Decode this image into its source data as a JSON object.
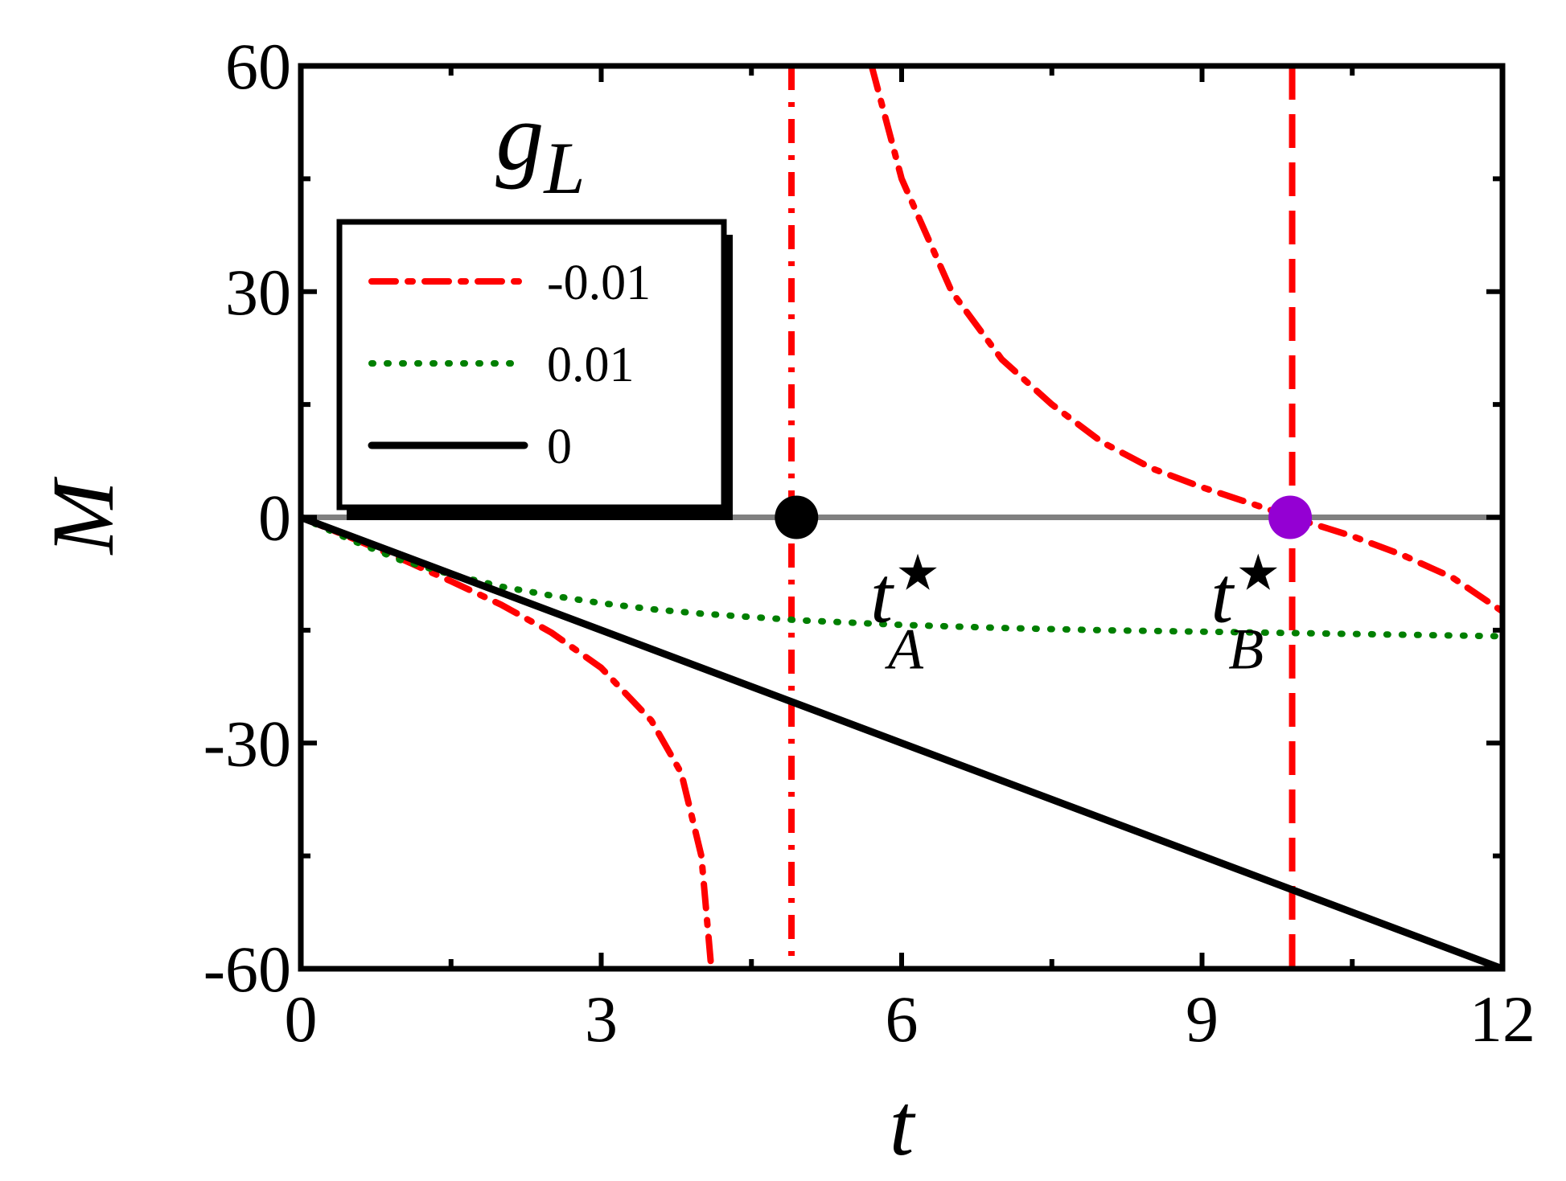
{
  "chart_data": {
    "type": "line",
    "xlabel": "t",
    "ylabel": "M",
    "xlim": [
      0,
      12
    ],
    "ylim": [
      -60,
      60
    ],
    "xticks": [
      0,
      3,
      6,
      9,
      12
    ],
    "xtick_labels": [
      "0",
      "3",
      "6",
      "9",
      "12"
    ],
    "yticks": [
      -60,
      -30,
      0,
      30,
      60
    ],
    "ytick_labels": [
      "-60",
      "-30",
      "0",
      "30",
      "60"
    ],
    "grid": false,
    "legend": {
      "title_main": "g",
      "title_sub": "L",
      "placement": "top-left",
      "entries": [
        "-0.01",
        "0.01",
        "0"
      ]
    },
    "series": [
      {
        "name": "-0.01",
        "color": "#ff0000",
        "style": "dash-dot",
        "segments": [
          [
            [
              0,
              0
            ],
            [
              0.5,
              -2.7
            ],
            [
              1,
              -5.5
            ],
            [
              1.5,
              -8.5
            ],
            [
              2,
              -11.6
            ],
            [
              2.5,
              -15.3
            ],
            [
              3,
              -20
            ],
            [
              3.5,
              -27
            ],
            [
              3.8,
              -34
            ],
            [
              4.0,
              -45
            ],
            [
              4.1,
              -60
            ]
          ],
          [
            [
              5.7,
              60
            ],
            [
              6,
              45
            ],
            [
              6.5,
              30
            ],
            [
              7,
              21
            ],
            [
              7.5,
              15
            ],
            [
              8,
              10
            ],
            [
              8.5,
              6.5
            ],
            [
              9,
              4
            ],
            [
              9.5,
              1.8
            ],
            [
              9.9,
              0
            ],
            [
              10.5,
              -2.5
            ],
            [
              11,
              -5
            ],
            [
              11.5,
              -8
            ],
            [
              12,
              -12.5
            ]
          ]
        ]
      },
      {
        "name": "0.01",
        "color": "#007f00",
        "style": "dotted",
        "x": [
          0,
          0.5,
          1,
          1.5,
          2,
          2.5,
          3,
          3.5,
          4,
          5,
          6,
          7,
          8,
          9,
          10,
          11,
          12
        ],
        "y": [
          0,
          -3,
          -5.7,
          -7.6,
          -9.2,
          -10.4,
          -11.4,
          -12.2,
          -12.8,
          -13.7,
          -14.3,
          -14.7,
          -15,
          -15.2,
          -15.4,
          -15.6,
          -15.8
        ]
      },
      {
        "name": "0",
        "color": "#000000",
        "style": "solid",
        "x": [
          0,
          12
        ],
        "y": [
          0,
          -60
        ]
      }
    ],
    "reference_lines": [
      {
        "orientation": "horizontal",
        "value": 0,
        "color": "#808080"
      },
      {
        "orientation": "vertical",
        "value": 4.9,
        "color": "#ff0000",
        "style": "dash-dot"
      },
      {
        "orientation": "vertical",
        "value": 9.9,
        "color": "#ff0000",
        "style": "dashed"
      }
    ],
    "markers": [
      {
        "x": 4.95,
        "y": 0,
        "color": "#000000"
      },
      {
        "x": 9.88,
        "y": 0,
        "color": "#9400d3"
      }
    ],
    "annotations": [
      {
        "main": "t",
        "sup": "★",
        "sub": "A",
        "x": 6.0,
        "y": -8
      },
      {
        "main": "t",
        "sup": "★",
        "sub": "B",
        "x": 9.4,
        "y": -8
      }
    ]
  }
}
